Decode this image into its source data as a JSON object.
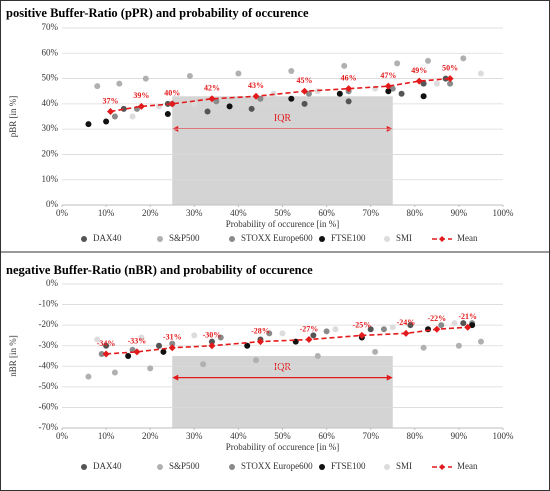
{
  "chart_data": [
    {
      "type": "scatter",
      "title": "positive Buffer-Ratio (pPR) and probability of occurence",
      "x_label": "Probability of occurence [in %]",
      "y_label": "pBR [in %]",
      "xlim": [
        0,
        100
      ],
      "ylim": [
        0,
        70
      ],
      "xticks": [
        {
          "value": 0,
          "label": "0%"
        },
        {
          "value": 10,
          "label": "10%"
        },
        {
          "value": 20,
          "label": "20%"
        },
        {
          "value": 30,
          "label": "30%"
        },
        {
          "value": 40,
          "label": "40%"
        },
        {
          "value": 50,
          "label": "50%"
        },
        {
          "value": 60,
          "label": "60%"
        },
        {
          "value": 70,
          "label": "70%"
        },
        {
          "value": 80,
          "label": "80%"
        },
        {
          "value": 90,
          "label": "90%"
        },
        {
          "value": 100,
          "label": "100%"
        }
      ],
      "yticks": [
        {
          "value": 0,
          "label": "0%"
        },
        {
          "value": 10,
          "label": "10%"
        },
        {
          "value": 20,
          "label": "20%"
        },
        {
          "value": 30,
          "label": "30%"
        },
        {
          "value": 40,
          "label": "40%"
        },
        {
          "value": 50,
          "label": "50%"
        },
        {
          "value": 60,
          "label": "60%"
        },
        {
          "value": 70,
          "label": "70%"
        }
      ],
      "grid": true,
      "iqr": {
        "label": "IQR",
        "x": [
          25,
          75
        ],
        "y": [
          0,
          43
        ]
      },
      "series": [
        {
          "name": "DAX40",
          "color": "#555555",
          "x": [
            14,
            24,
            33,
            43,
            55,
            65,
            77,
            82,
            87
          ],
          "values": [
            38,
            40,
            37,
            38,
            40,
            41,
            44,
            48,
            50
          ]
        },
        {
          "name": "S&P500",
          "color": "#b0b0b0",
          "x": [
            8,
            13,
            19,
            29,
            40,
            52,
            64,
            76,
            83,
            91
          ],
          "values": [
            47,
            48,
            50,
            51,
            52,
            53,
            55,
            56,
            57,
            58
          ]
        },
        {
          "name": "STOXX Europe600",
          "color": "#8a8a8a",
          "x": [
            12,
            17,
            25,
            35,
            45,
            56,
            65,
            75,
            88
          ],
          "values": [
            35,
            38,
            40,
            41,
            42,
            44,
            45,
            46,
            48
          ]
        },
        {
          "name": "FTSE100",
          "color": "#111111",
          "x": [
            6,
            10,
            24,
            38,
            52,
            63,
            74,
            82
          ],
          "values": [
            32,
            33,
            36,
            39,
            42,
            44,
            45,
            43
          ]
        },
        {
          "name": "SMI",
          "color": "#dcdcdc",
          "x": [
            16,
            22,
            30,
            48,
            58,
            71,
            85,
            95
          ],
          "values": [
            35,
            39,
            40,
            44,
            45,
            46,
            48,
            52
          ]
        },
        {
          "name": "Mean",
          "color": "#e31a1c",
          "line": "dashed",
          "x": [
            11,
            18,
            25,
            34,
            44,
            55,
            65,
            74,
            81,
            88
          ],
          "values": [
            37,
            39,
            40,
            42,
            43,
            45,
            46,
            47,
            49,
            50
          ],
          "value_labels": [
            "37%",
            "39%",
            "40%",
            "42%",
            "43%",
            "45%",
            "46%",
            "47%",
            "49%",
            "50%"
          ]
        }
      ]
    },
    {
      "type": "scatter",
      "title": "negative Buffer-Ratio (nBR) and probability of occurence",
      "x_label": "Probability of occurence [in %]",
      "y_label": "nBR [in %]",
      "xlim": [
        0,
        100
      ],
      "ylim": [
        -70,
        0
      ],
      "xticks": [
        {
          "value": 0,
          "label": "0%"
        },
        {
          "value": 10,
          "label": "10%"
        },
        {
          "value": 20,
          "label": "20%"
        },
        {
          "value": 30,
          "label": "30%"
        },
        {
          "value": 40,
          "label": "40%"
        },
        {
          "value": 50,
          "label": "50%"
        },
        {
          "value": 60,
          "label": "60%"
        },
        {
          "value": 70,
          "label": "70%"
        },
        {
          "value": 80,
          "label": "80%"
        },
        {
          "value": 90,
          "label": "90%"
        },
        {
          "value": 100,
          "label": "100%"
        }
      ],
      "yticks": [
        {
          "value": 0,
          "label": "0%"
        },
        {
          "value": -10,
          "label": "-10%"
        },
        {
          "value": -20,
          "label": "-20%"
        },
        {
          "value": -30,
          "label": "-30%"
        },
        {
          "value": -40,
          "label": "-40%"
        },
        {
          "value": -50,
          "label": "-50%"
        },
        {
          "value": -60,
          "label": "-60%"
        },
        {
          "value": -70,
          "label": "-70%"
        }
      ],
      "grid": true,
      "iqr": {
        "label": "IQR",
        "x": [
          25,
          75
        ],
        "y": [
          -70,
          -35
        ]
      },
      "series": [
        {
          "name": "DAX40",
          "color": "#555555",
          "x": [
            10,
            22,
            34,
            45,
            57,
            70,
            79,
            91
          ],
          "values": [
            -30,
            -30,
            -28,
            -27,
            -25,
            -22,
            -20,
            -19
          ]
        },
        {
          "name": "S&P500",
          "color": "#b0b0b0",
          "x": [
            6,
            12,
            20,
            32,
            44,
            58,
            71,
            82,
            90,
            95
          ],
          "values": [
            -45,
            -43,
            -41,
            -39,
            -37,
            -35,
            -33,
            -31,
            -30,
            -28
          ]
        },
        {
          "name": "STOXX Europe600",
          "color": "#8a8a8a",
          "x": [
            9,
            16,
            25,
            36,
            47,
            60,
            73,
            86,
            93
          ],
          "values": [
            -34,
            -32,
            -29,
            -26,
            -24,
            -23,
            -22,
            -20,
            -19
          ]
        },
        {
          "name": "FTSE100",
          "color": "#111111",
          "x": [
            15,
            23,
            42,
            53,
            68,
            83,
            93
          ],
          "values": [
            -35,
            -33,
            -30,
            -28,
            -26,
            -22,
            -20
          ]
        },
        {
          "name": "SMI",
          "color": "#dcdcdc",
          "x": [
            8,
            18,
            30,
            50,
            62,
            75,
            89
          ],
          "values": [
            -27,
            -26,
            -25,
            -24,
            -22,
            -21,
            -19
          ]
        },
        {
          "name": "Mean",
          "color": "#e31a1c",
          "line": "dashed",
          "x": [
            10,
            17,
            25,
            34,
            45,
            56,
            68,
            78,
            85,
            92
          ],
          "values": [
            -34,
            -33,
            -31,
            -30,
            -28,
            -27,
            -25,
            -24,
            -22,
            -21
          ],
          "value_labels": [
            "-34%",
            "-33%",
            "-31%",
            "-30%",
            "-28%",
            "-27%",
            "-25%",
            "-24%",
            "-22%",
            "-21%"
          ]
        }
      ]
    }
  ]
}
